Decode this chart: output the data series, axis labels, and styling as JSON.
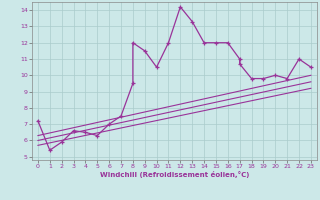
{
  "xlabel": "Windchill (Refroidissement éolien,°C)",
  "background_color": "#cce8e8",
  "line_color": "#993399",
  "xlim": [
    -0.5,
    23.5
  ],
  "ylim": [
    4.8,
    14.5
  ],
  "xticks": [
    0,
    1,
    2,
    3,
    4,
    5,
    6,
    7,
    8,
    9,
    10,
    11,
    12,
    13,
    14,
    15,
    16,
    17,
    18,
    19,
    20,
    21,
    22,
    23
  ],
  "yticks": [
    5,
    6,
    7,
    8,
    9,
    10,
    11,
    12,
    13,
    14
  ],
  "series": [
    [
      0,
      7.2
    ],
    [
      1,
      5.4
    ],
    [
      2,
      5.9
    ],
    [
      3,
      6.6
    ],
    [
      4,
      6.5
    ],
    [
      5,
      6.3
    ],
    [
      6,
      7.0
    ],
    [
      7,
      7.5
    ],
    [
      8,
      9.5
    ],
    [
      8,
      12.0
    ],
    [
      9,
      11.5
    ],
    [
      10,
      10.5
    ],
    [
      11,
      12.0
    ],
    [
      12,
      14.2
    ],
    [
      13,
      13.3
    ],
    [
      14,
      12.0
    ],
    [
      15,
      12.0
    ],
    [
      16,
      12.0
    ],
    [
      17,
      11.0
    ],
    [
      17,
      10.7
    ],
    [
      18,
      9.8
    ],
    [
      19,
      9.8
    ],
    [
      20,
      10.0
    ],
    [
      21,
      9.8
    ],
    [
      22,
      11.0
    ],
    [
      23,
      10.5
    ]
  ],
  "line1_x": [
    0,
    23
  ],
  "line1_y": [
    6.3,
    10.0
  ],
  "line2_x": [
    0,
    23
  ],
  "line2_y": [
    6.0,
    9.6
  ],
  "line3_x": [
    0,
    23
  ],
  "line3_y": [
    5.7,
    9.2
  ]
}
